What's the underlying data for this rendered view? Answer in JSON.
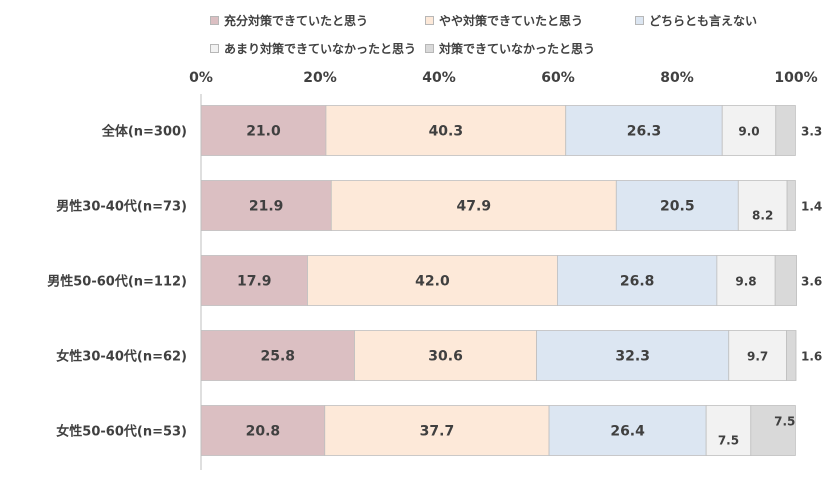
{
  "chart_data": {
    "type": "bar",
    "orientation": "horizontal",
    "stacked": true,
    "categories": [
      "全体(n=300)",
      "男性30-40代(n=73)",
      "男性50-60代(n=112)",
      "女性30-40代(n=62)",
      "女性50-60代(n=53)"
    ],
    "series": [
      {
        "name": "充分対策できていたと思う",
        "color": "#dbbfc2",
        "values": [
          21.0,
          21.9,
          17.9,
          25.8,
          20.8
        ]
      },
      {
        "name": "やや対策できていたと思う",
        "color": "#fde9d9",
        "values": [
          40.3,
          47.9,
          42.0,
          30.6,
          37.7
        ]
      },
      {
        "name": "どちらとも言えない",
        "color": "#dce6f2",
        "values": [
          26.3,
          20.5,
          26.8,
          32.3,
          26.4
        ]
      },
      {
        "name": "あまり対策できていなかったと思う",
        "color": "#f2f2f2",
        "values": [
          9.0,
          8.2,
          9.8,
          9.7,
          7.5
        ]
      },
      {
        "name": "対策できていなかったと思う",
        "color": "#d9d9d9",
        "values": [
          3.3,
          1.4,
          3.6,
          1.6,
          7.5
        ]
      }
    ],
    "value_labels": [
      [
        "21.0",
        "40.3",
        "26.3",
        "9.0",
        "3.3"
      ],
      [
        "21.9",
        "47.9",
        "20.5",
        "8.2",
        "1.4"
      ],
      [
        "17.9",
        "42.0",
        "26.8",
        "9.8",
        "3.6"
      ],
      [
        "25.8",
        "30.6",
        "32.3",
        "9.7",
        "1.6"
      ],
      [
        "20.8",
        "37.7",
        "26.4",
        "7.5",
        "7.5"
      ]
    ],
    "xlim": [
      0,
      100
    ],
    "x_ticks": [
      "0%",
      "20%",
      "40%",
      "60%",
      "80%",
      "100%"
    ],
    "legend_position": "top",
    "grid": false
  }
}
